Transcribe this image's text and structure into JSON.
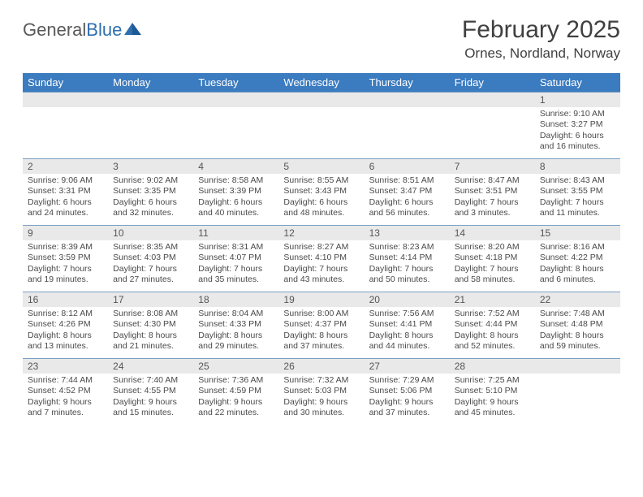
{
  "logo": {
    "text_gray": "General",
    "text_blue": "Blue"
  },
  "title": "February 2025",
  "location": "Ornes, Nordland, Norway",
  "colors": {
    "header_bg": "#3b7bbf",
    "header_text": "#ffffff",
    "daynum_bg": "#e9e9e9",
    "cell_border": "#7a9fc4",
    "logo_gray": "#595959",
    "logo_blue": "#2f6faf",
    "body_text": "#4a4a4a",
    "title_text": "#404040"
  },
  "columns": [
    "Sunday",
    "Monday",
    "Tuesday",
    "Wednesday",
    "Thursday",
    "Friday",
    "Saturday"
  ],
  "weeks": [
    [
      {
        "n": "",
        "empty": true
      },
      {
        "n": "",
        "empty": true
      },
      {
        "n": "",
        "empty": true
      },
      {
        "n": "",
        "empty": true
      },
      {
        "n": "",
        "empty": true
      },
      {
        "n": "",
        "empty": true
      },
      {
        "n": "1",
        "sr": "9:10 AM",
        "ss": "3:27 PM",
        "dl": "6 hours and 16 minutes."
      }
    ],
    [
      {
        "n": "2",
        "sr": "9:06 AM",
        "ss": "3:31 PM",
        "dl": "6 hours and 24 minutes."
      },
      {
        "n": "3",
        "sr": "9:02 AM",
        "ss": "3:35 PM",
        "dl": "6 hours and 32 minutes."
      },
      {
        "n": "4",
        "sr": "8:58 AM",
        "ss": "3:39 PM",
        "dl": "6 hours and 40 minutes."
      },
      {
        "n": "5",
        "sr": "8:55 AM",
        "ss": "3:43 PM",
        "dl": "6 hours and 48 minutes."
      },
      {
        "n": "6",
        "sr": "8:51 AM",
        "ss": "3:47 PM",
        "dl": "6 hours and 56 minutes."
      },
      {
        "n": "7",
        "sr": "8:47 AM",
        "ss": "3:51 PM",
        "dl": "7 hours and 3 minutes."
      },
      {
        "n": "8",
        "sr": "8:43 AM",
        "ss": "3:55 PM",
        "dl": "7 hours and 11 minutes."
      }
    ],
    [
      {
        "n": "9",
        "sr": "8:39 AM",
        "ss": "3:59 PM",
        "dl": "7 hours and 19 minutes."
      },
      {
        "n": "10",
        "sr": "8:35 AM",
        "ss": "4:03 PM",
        "dl": "7 hours and 27 minutes."
      },
      {
        "n": "11",
        "sr": "8:31 AM",
        "ss": "4:07 PM",
        "dl": "7 hours and 35 minutes."
      },
      {
        "n": "12",
        "sr": "8:27 AM",
        "ss": "4:10 PM",
        "dl": "7 hours and 43 minutes."
      },
      {
        "n": "13",
        "sr": "8:23 AM",
        "ss": "4:14 PM",
        "dl": "7 hours and 50 minutes."
      },
      {
        "n": "14",
        "sr": "8:20 AM",
        "ss": "4:18 PM",
        "dl": "7 hours and 58 minutes."
      },
      {
        "n": "15",
        "sr": "8:16 AM",
        "ss": "4:22 PM",
        "dl": "8 hours and 6 minutes."
      }
    ],
    [
      {
        "n": "16",
        "sr": "8:12 AM",
        "ss": "4:26 PM",
        "dl": "8 hours and 13 minutes."
      },
      {
        "n": "17",
        "sr": "8:08 AM",
        "ss": "4:30 PM",
        "dl": "8 hours and 21 minutes."
      },
      {
        "n": "18",
        "sr": "8:04 AM",
        "ss": "4:33 PM",
        "dl": "8 hours and 29 minutes."
      },
      {
        "n": "19",
        "sr": "8:00 AM",
        "ss": "4:37 PM",
        "dl": "8 hours and 37 minutes."
      },
      {
        "n": "20",
        "sr": "7:56 AM",
        "ss": "4:41 PM",
        "dl": "8 hours and 44 minutes."
      },
      {
        "n": "21",
        "sr": "7:52 AM",
        "ss": "4:44 PM",
        "dl": "8 hours and 52 minutes."
      },
      {
        "n": "22",
        "sr": "7:48 AM",
        "ss": "4:48 PM",
        "dl": "8 hours and 59 minutes."
      }
    ],
    [
      {
        "n": "23",
        "sr": "7:44 AM",
        "ss": "4:52 PM",
        "dl": "9 hours and 7 minutes."
      },
      {
        "n": "24",
        "sr": "7:40 AM",
        "ss": "4:55 PM",
        "dl": "9 hours and 15 minutes."
      },
      {
        "n": "25",
        "sr": "7:36 AM",
        "ss": "4:59 PM",
        "dl": "9 hours and 22 minutes."
      },
      {
        "n": "26",
        "sr": "7:32 AM",
        "ss": "5:03 PM",
        "dl": "9 hours and 30 minutes."
      },
      {
        "n": "27",
        "sr": "7:29 AM",
        "ss": "5:06 PM",
        "dl": "9 hours and 37 minutes."
      },
      {
        "n": "28",
        "sr": "7:25 AM",
        "ss": "5:10 PM",
        "dl": "9 hours and 45 minutes."
      },
      {
        "n": "",
        "empty": true
      }
    ]
  ],
  "labels": {
    "sunrise": "Sunrise:",
    "sunset": "Sunset:",
    "daylight": "Daylight:"
  }
}
